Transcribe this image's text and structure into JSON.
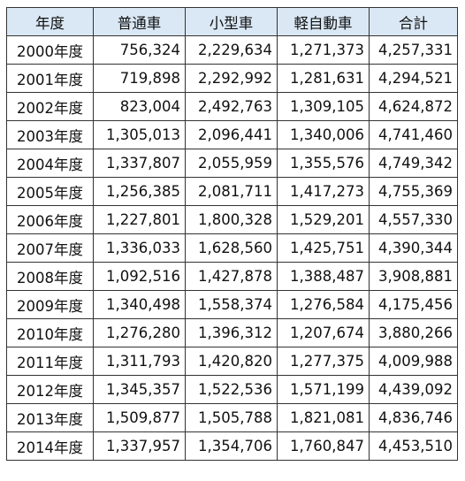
{
  "table": {
    "headers": [
      "年度",
      "普通車",
      "小型車",
      "軽自動車",
      "合計"
    ],
    "rows": [
      [
        "2000年度",
        "756,324",
        "2,229,634",
        "1,271,373",
        "4,257,331"
      ],
      [
        "2001年度",
        "719,898",
        "2,292,992",
        "1,281,631",
        "4,294,521"
      ],
      [
        "2002年度",
        "823,004",
        "2,492,763",
        "1,309,105",
        "4,624,872"
      ],
      [
        "2003年度",
        "1,305,013",
        "2,096,441",
        "1,340,006",
        "4,741,460"
      ],
      [
        "2004年度",
        "1,337,807",
        "2,055,959",
        "1,355,576",
        "4,749,342"
      ],
      [
        "2005年度",
        "1,256,385",
        "2,081,711",
        "1,417,273",
        "4,755,369"
      ],
      [
        "2006年度",
        "1,227,801",
        "1,800,328",
        "1,529,201",
        "4,557,330"
      ],
      [
        "2007年度",
        "1,336,033",
        "1,628,560",
        "1,425,751",
        "4,390,344"
      ],
      [
        "2008年度",
        "1,092,516",
        "1,427,878",
        "1,388,487",
        "3,908,881"
      ],
      [
        "2009年度",
        "1,340,498",
        "1,558,374",
        "1,276,584",
        "4,175,456"
      ],
      [
        "2010年度",
        "1,276,280",
        "1,396,312",
        "1,207,674",
        "3,880,266"
      ],
      [
        "2011年度",
        "1,311,793",
        "1,420,820",
        "1,277,375",
        "4,009,988"
      ],
      [
        "2012年度",
        "1,345,357",
        "1,522,536",
        "1,571,199",
        "4,439,092"
      ],
      [
        "2013年度",
        "1,509,877",
        "1,505,788",
        "1,821,081",
        "4,836,746"
      ],
      [
        "2014年度",
        "1,337,957",
        "1,354,706",
        "1,760,847",
        "4,453,510"
      ]
    ]
  },
  "colors": {
    "header_background": "#dae8f5",
    "border": "#333333",
    "text": "#111111"
  }
}
